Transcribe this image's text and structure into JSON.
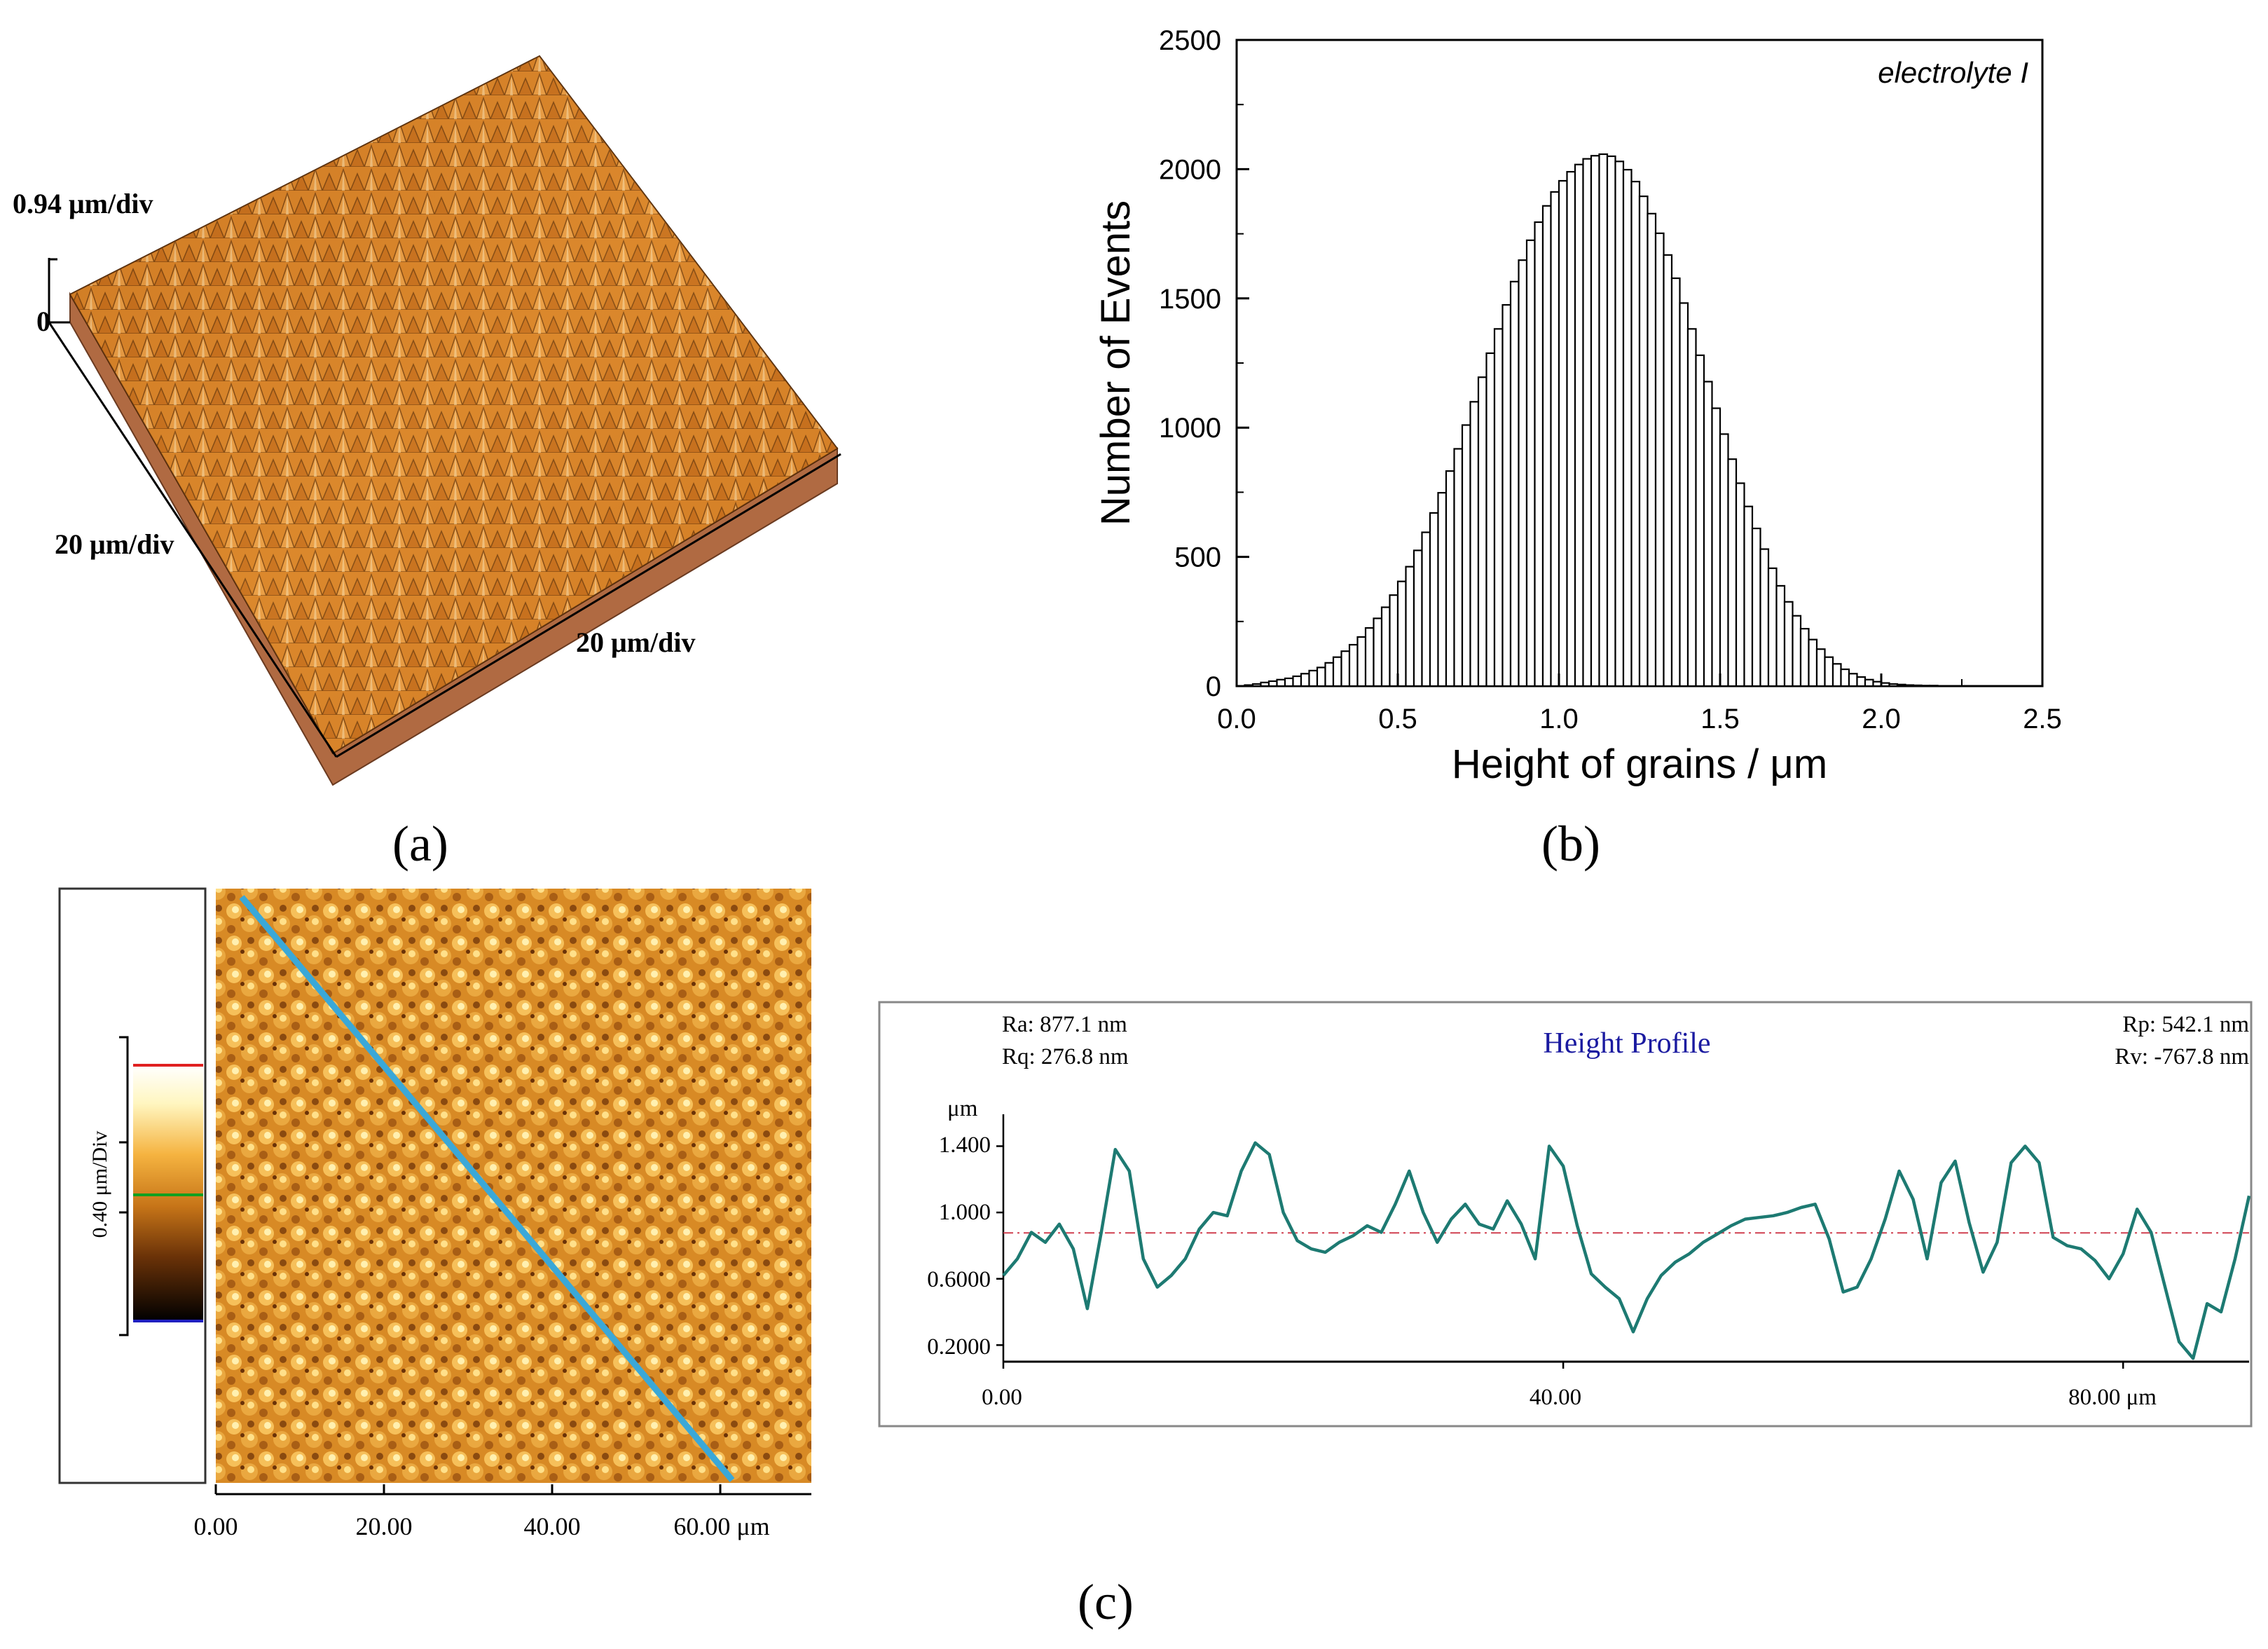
{
  "figure": {
    "panels": {
      "a": "(a)",
      "b": "(b)",
      "c": "(c)"
    },
    "panel_a": {
      "z_scale": "0.94 μm/div",
      "z_zero": "0",
      "x_scale": "20 μm/div",
      "y_scale": "20 μm/div"
    },
    "panel_c_map": {
      "colorbar_label": "0.40 μm/Div",
      "x_ticks": [
        "0.00",
        "20.00",
        "40.00",
        "60.00 μm"
      ]
    },
    "panel_c_profile": {
      "title": "Height Profile",
      "ra": "Ra: 877.1 nm",
      "rq": "Rq: 276.8 nm",
      "rp": "Rp: 542.1 nm",
      "rv": "Rv: -767.8 nm",
      "unit": "μm",
      "y_ticks": [
        "1.400",
        "1.000",
        "0.6000",
        "0.2000"
      ],
      "x_ticks": [
        "0.00",
        "40.00",
        "80.00 μm"
      ]
    }
  },
  "chart_data": [
    {
      "id": "b",
      "type": "bar",
      "title": "",
      "annotation": "electrolyte I",
      "xlabel": "Height of grains / μm",
      "ylabel": "Number of Events",
      "xlim": [
        0.0,
        2.5
      ],
      "ylim": [
        0,
        2500
      ],
      "x_ticks": [
        "0.0",
        "0.5",
        "1.0",
        "1.5",
        "2.0",
        "2.5"
      ],
      "y_ticks": [
        "0",
        "500",
        "1000",
        "1500",
        "2000",
        "2500"
      ],
      "bin_width": 0.025,
      "bin_centers_from": 0.0125,
      "values": [
        0,
        4,
        8,
        14,
        19,
        25,
        30,
        38,
        48,
        60,
        72,
        90,
        112,
        135,
        160,
        190,
        225,
        262,
        305,
        352,
        405,
        462,
        525,
        595,
        670,
        748,
        832,
        918,
        1010,
        1100,
        1195,
        1288,
        1382,
        1475,
        1565,
        1648,
        1725,
        1795,
        1858,
        1912,
        1955,
        1990,
        2018,
        2040,
        2052,
        2058,
        2050,
        2030,
        1998,
        1952,
        1895,
        1828,
        1752,
        1668,
        1578,
        1482,
        1382,
        1280,
        1178,
        1075,
        975,
        878,
        785,
        695,
        610,
        530,
        456,
        388,
        326,
        272,
        222,
        180,
        143,
        112,
        86,
        65,
        48,
        35,
        25,
        17,
        12,
        8,
        6,
        4,
        3,
        2,
        2,
        1,
        1,
        1,
        1,
        0,
        0,
        0,
        0,
        0,
        0,
        0,
        0,
        0
      ]
    },
    {
      "id": "c-profile",
      "type": "line",
      "title": "Height Profile",
      "xlabel": "μm",
      "ylabel": "μm",
      "xlim": [
        0,
        89
      ],
      "ylim": [
        0.1,
        1.55
      ],
      "mean_line": 0.877,
      "x": [
        0,
        1,
        2,
        3,
        4,
        5,
        6,
        7,
        8,
        9,
        10,
        11,
        12,
        13,
        14,
        15,
        16,
        17,
        18,
        19,
        20,
        21,
        22,
        23,
        24,
        25,
        26,
        27,
        28,
        29,
        30,
        31,
        32,
        33,
        34,
        35,
        36,
        37,
        38,
        39,
        40,
        41,
        42,
        43,
        44,
        45,
        46,
        47,
        48,
        49,
        50,
        51,
        52,
        53,
        54,
        55,
        56,
        57,
        58,
        59,
        60,
        61,
        62,
        63,
        64,
        65,
        66,
        67,
        68,
        69,
        70,
        71,
        72,
        73,
        74,
        75,
        76,
        77,
        78,
        79,
        80,
        81,
        82,
        83,
        84,
        85,
        86,
        87,
        88,
        89
      ],
      "y": [
        0.62,
        0.72,
        0.88,
        0.82,
        0.93,
        0.78,
        0.42,
        0.88,
        1.38,
        1.25,
        0.72,
        0.55,
        0.62,
        0.72,
        0.9,
        1.0,
        0.98,
        1.25,
        1.42,
        1.35,
        1.0,
        0.83,
        0.78,
        0.76,
        0.82,
        0.86,
        0.92,
        0.88,
        1.05,
        1.25,
        1.0,
        0.82,
        0.96,
        1.05,
        0.93,
        0.9,
        1.07,
        0.93,
        0.72,
        1.4,
        1.28,
        0.92,
        0.63,
        0.55,
        0.48,
        0.28,
        0.48,
        0.62,
        0.7,
        0.75,
        0.82,
        0.87,
        0.92,
        0.96,
        0.97,
        0.98,
        1.0,
        1.03,
        1.05,
        0.84,
        0.52,
        0.55,
        0.72,
        0.96,
        1.25,
        1.08,
        0.72,
        1.18,
        1.31,
        0.94,
        0.64,
        0.82,
        1.3,
        1.4,
        1.3,
        0.85,
        0.8,
        0.78,
        0.71,
        0.6,
        0.75,
        1.02,
        0.88,
        0.55,
        0.22,
        0.12,
        0.45,
        0.4,
        0.72,
        1.1
      ]
    }
  ]
}
